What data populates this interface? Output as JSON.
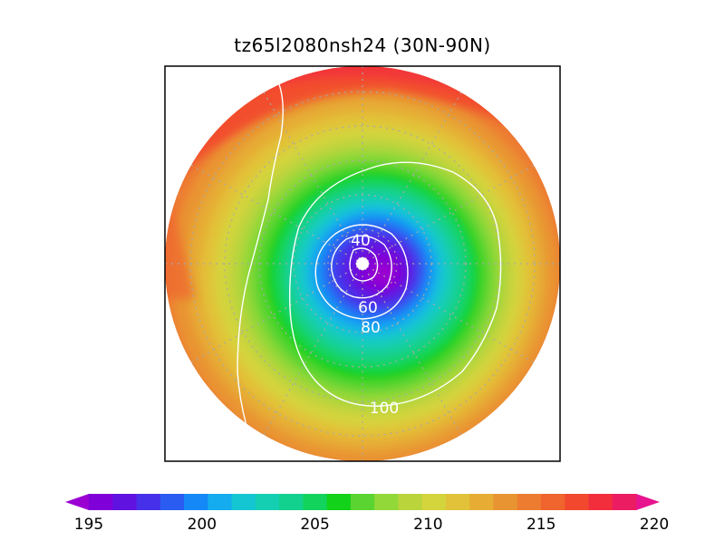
{
  "title": "tz65l2080nsh24 (30N-90N)",
  "map": {
    "projection": "north polar stereographic",
    "latitude_range": "30N-90N",
    "contour_labels": [
      "40",
      "60",
      "80",
      "100"
    ]
  },
  "colorbar": {
    "tick_labels": [
      "195",
      "200",
      "205",
      "210",
      "215",
      "220"
    ],
    "min": 195,
    "max": 220,
    "step": 1,
    "colors": [
      "#9a00d2",
      "#7f00d8",
      "#6012e0",
      "#4630ea",
      "#2a5cf2",
      "#1488f6",
      "#14acee",
      "#14c6d2",
      "#14cfb2",
      "#12d08e",
      "#12d45c",
      "#12d21a",
      "#5ad430",
      "#92d838",
      "#bad43c",
      "#d4d43c",
      "#e2c238",
      "#e6ac34",
      "#e99432",
      "#ed7c30",
      "#f0642e",
      "#f2482e",
      "#f22e3c",
      "#ec1c62",
      "#e6148e"
    ],
    "extend": "both"
  }
}
